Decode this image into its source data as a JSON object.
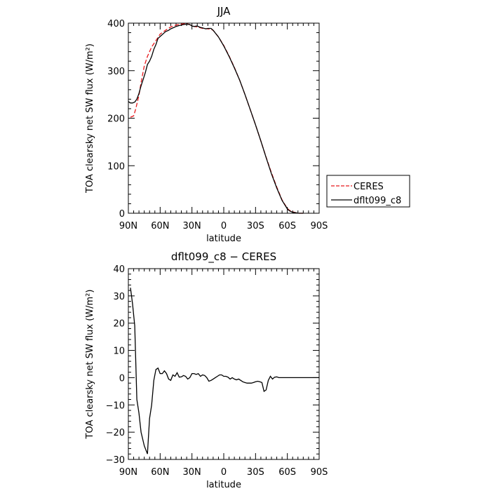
{
  "chart_data": [
    {
      "type": "line",
      "title": "JJA",
      "xlabel": "latitude",
      "ylabel": "TOA clearsky net SW flux (W/m²)",
      "xlim": [
        90,
        -90
      ],
      "ylim": [
        0,
        400
      ],
      "x_ticks": [
        90,
        60,
        30,
        0,
        -30,
        -60,
        -90
      ],
      "x_tick_labels": [
        "90N",
        "60N",
        "30N",
        "0",
        "30S",
        "60S",
        "90S"
      ],
      "y_ticks": [
        0,
        100,
        200,
        300,
        400
      ],
      "y_tick_labels": [
        "0",
        "100",
        "200",
        "300",
        "400"
      ],
      "legend": "right",
      "series": [
        {
          "name": "CERES",
          "color": "#e8191c",
          "dash": "dashed",
          "x": [
            88,
            85,
            83,
            80,
            78,
            75,
            72,
            70,
            68,
            65,
            62,
            60,
            55,
            50,
            45,
            40,
            35,
            30,
            28,
            25,
            20,
            15,
            12,
            10,
            5,
            0,
            -5,
            -10,
            -15,
            -20,
            -25,
            -30,
            -35,
            -40,
            -45,
            -50,
            -55,
            -60,
            -62,
            -65,
            -68,
            -70,
            -75
          ],
          "values": [
            202,
            205,
            220,
            248,
            275,
            310,
            330,
            340,
            350,
            360,
            370,
            377,
            385,
            392,
            396,
            398,
            399,
            395,
            393,
            392,
            389,
            388,
            387,
            385,
            371,
            353,
            331,
            307,
            280,
            250,
            218,
            186,
            152,
            118,
            85,
            55,
            28,
            10,
            6,
            3,
            1,
            0,
            0
          ]
        },
        {
          "name": "dflt099_c8",
          "color": "#000000",
          "dash": "solid",
          "x": [
            90,
            88,
            86,
            84,
            82,
            80,
            78,
            76,
            74,
            72,
            70,
            68,
            66,
            64,
            62,
            60,
            58,
            55,
            52,
            50,
            47,
            45,
            42,
            40,
            38,
            35,
            32,
            30,
            28,
            25,
            22,
            20,
            17,
            15,
            12,
            10,
            5,
            0,
            -5,
            -10,
            -15,
            -20,
            -25,
            -30,
            -35,
            -40,
            -45,
            -50,
            -55,
            -60,
            -62,
            -65,
            -68,
            -70,
            -75
          ],
          "values": [
            235,
            232,
            232,
            234,
            240,
            252,
            268,
            282,
            296,
            313,
            320,
            330,
            345,
            355,
            368,
            372,
            376,
            382,
            385,
            388,
            391,
            393,
            395,
            396,
            397,
            398,
            397,
            394,
            393,
            394,
            391,
            390,
            388,
            389,
            389,
            385,
            371,
            352,
            330,
            306,
            280,
            250,
            218,
            186,
            152,
            117,
            83,
            53,
            27,
            9,
            5,
            2,
            1,
            0,
            0
          ]
        }
      ]
    },
    {
      "type": "line",
      "title": "dflt099_c8 − CERES",
      "xlabel": "latitude",
      "ylabel": "TOA clearsky net SW flux (W/m²)",
      "xlim": [
        90,
        -90
      ],
      "ylim": [
        -30,
        40
      ],
      "x_ticks": [
        90,
        60,
        30,
        0,
        -30,
        -60,
        -90
      ],
      "x_tick_labels": [
        "90N",
        "60N",
        "30N",
        "0",
        "30S",
        "60S",
        "90S"
      ],
      "y_ticks": [
        -30,
        -20,
        -10,
        0,
        10,
        20,
        30,
        40
      ],
      "y_tick_labels": [
        "−30",
        "−20",
        "−10",
        "0",
        "10",
        "20",
        "30",
        "40"
      ],
      "series": [
        {
          "name": "",
          "color": "#000000",
          "dash": "solid",
          "x": [
            88,
            86,
            84,
            82,
            80,
            78,
            75,
            72,
            70,
            68,
            66,
            64,
            62,
            60,
            58,
            56,
            54,
            52,
            50,
            48,
            46,
            44,
            42,
            40,
            38,
            36,
            34,
            32,
            30,
            28,
            26,
            24,
            22,
            20,
            18,
            16,
            14,
            12,
            10,
            8,
            6,
            4,
            2,
            0,
            -2,
            -4,
            -6,
            -8,
            -10,
            -12,
            -14,
            -16,
            -18,
            -20,
            -22,
            -24,
            -26,
            -28,
            -30,
            -32,
            -34,
            -36,
            -38,
            -40,
            -42,
            -44,
            -46,
            -48,
            -50,
            -52,
            -54,
            -56,
            -58,
            -60,
            -62,
            -64,
            -66,
            -68,
            -70,
            -72,
            -75,
            -80,
            -85,
            -90
          ],
          "values": [
            33,
            27,
            19,
            -8,
            -13,
            -20,
            -25,
            -28,
            -15,
            -10,
            -1,
            3,
            3.5,
            1.5,
            1.5,
            2.5,
            1.5,
            -0.5,
            -1,
            1,
            0.5,
            1.8,
            0.2,
            0.3,
            0.8,
            0.5,
            -0.5,
            0,
            1.5,
            1.5,
            1.2,
            1.5,
            0.5,
            1,
            0.8,
            0,
            -1.3,
            -1,
            -0.5,
            0,
            0.5,
            1,
            1,
            0.5,
            0.5,
            0.2,
            -0.5,
            0,
            -0.5,
            -0.8,
            -0.5,
            -1,
            -1.5,
            -1.8,
            -2,
            -2,
            -2,
            -1.8,
            -1.5,
            -1.3,
            -1.5,
            -1.8,
            -5,
            -4.5,
            -1,
            0.5,
            -0.5,
            0.2,
            0.3,
            0,
            0,
            0,
            0,
            0,
            0,
            0,
            0,
            0,
            0,
            0,
            0,
            0,
            0,
            0
          ]
        }
      ]
    }
  ]
}
